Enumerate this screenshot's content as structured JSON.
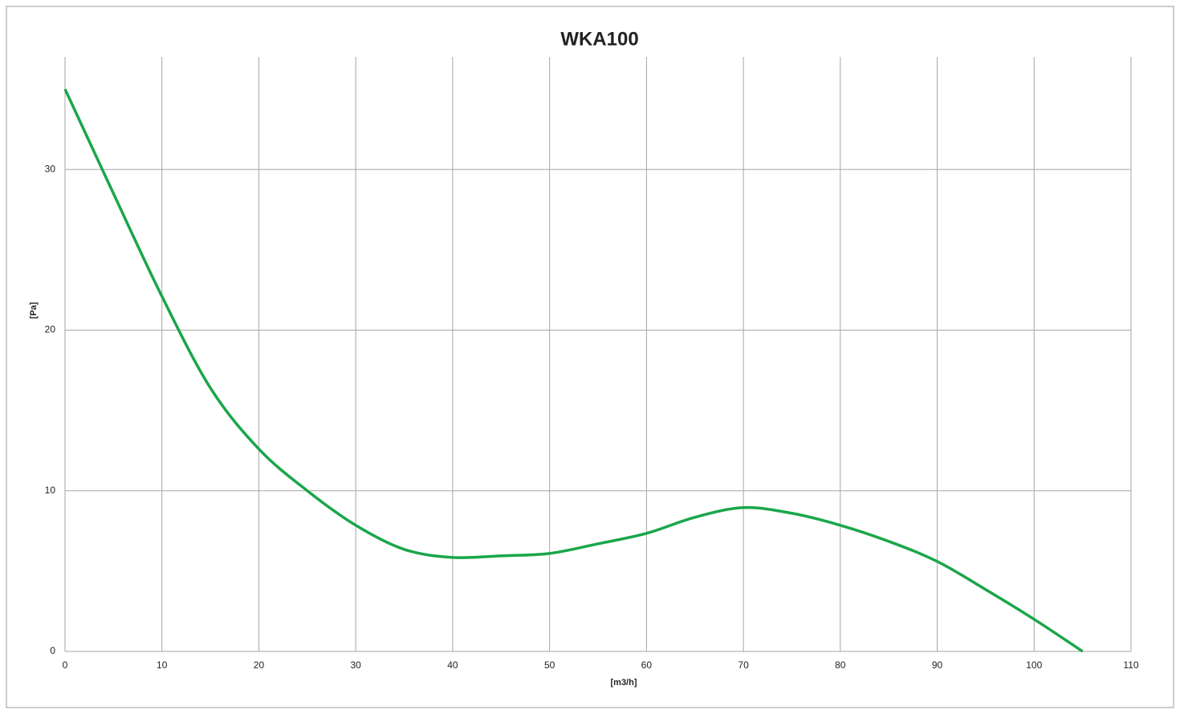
{
  "chart_data": {
    "type": "line",
    "title": "WKA100",
    "x_label": "[m3/h]",
    "y_label": "[Pa]",
    "x": [
      0,
      5,
      10,
      15,
      20,
      25,
      30,
      35,
      40,
      45,
      50,
      55,
      60,
      65,
      70,
      75,
      80,
      85,
      90,
      95,
      100,
      105
    ],
    "series": [
      {
        "name": "WKA100",
        "color": "#1aa64a",
        "values": [
          35,
          28.5,
          22.1,
          16.4,
          12.6,
          10,
          7.85,
          6.35,
          5.85,
          5.95,
          6.1,
          6.7,
          7.35,
          8.35,
          8.95,
          8.6,
          7.85,
          6.85,
          5.6,
          3.85,
          2.0,
          0
        ]
      }
    ],
    "xlim": [
      0,
      110
    ],
    "xticks": [
      0,
      10,
      20,
      30,
      40,
      50,
      60,
      70,
      80,
      90,
      100,
      110
    ],
    "ylim": [
      0,
      37
    ],
    "yticks": [
      0,
      10,
      20,
      30
    ],
    "grid": true
  }
}
